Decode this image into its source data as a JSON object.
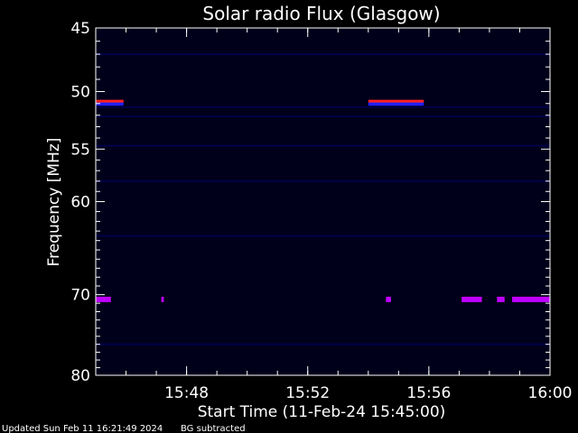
{
  "chart_data": {
    "type": "heatmap",
    "title": "Solar radio Flux (Glasgow)",
    "xlabel": "Start Time (11-Feb-24 15:45:00)",
    "ylabel": "Frequency [MHz]",
    "xlim": [
      "15:45:00",
      "16:00:00"
    ],
    "ylim": [
      45,
      80
    ],
    "y_scale": "log",
    "x_ticks": [
      "15:48",
      "15:52",
      "15:56",
      "16:00"
    ],
    "y_ticks": [
      45,
      50,
      55,
      60,
      70,
      80
    ],
    "background_color": "#00001a",
    "features": [
      {
        "frequency_mhz": 50.8,
        "start": "15:45:00",
        "end": "15:45:55",
        "color": "#ff2020"
      },
      {
        "frequency_mhz": 50.8,
        "start": "15:54:00",
        "end": "15:55:50",
        "color": "#ff2020"
      },
      {
        "frequency_mhz": 70.5,
        "start": "15:45:00",
        "end": "15:45:30",
        "color": "#c000ff"
      },
      {
        "frequency_mhz": 70.5,
        "start": "15:47:10",
        "end": "15:47:15",
        "color": "#c000ff"
      },
      {
        "frequency_mhz": 70.5,
        "start": "15:54:35",
        "end": "15:54:45",
        "color": "#c000ff"
      },
      {
        "frequency_mhz": 70.5,
        "start": "15:57:05",
        "end": "15:57:45",
        "color": "#c000ff"
      },
      {
        "frequency_mhz": 70.5,
        "start": "15:58:15",
        "end": "15:58:30",
        "color": "#c000ff"
      },
      {
        "frequency_mhz": 70.5,
        "start": "15:58:45",
        "end": "16:00:00",
        "color": "#c000ff"
      }
    ]
  },
  "footer": {
    "updated": "Updated Sun Feb 11 16:21:49 2024",
    "bg_note": "BG subtracted"
  }
}
